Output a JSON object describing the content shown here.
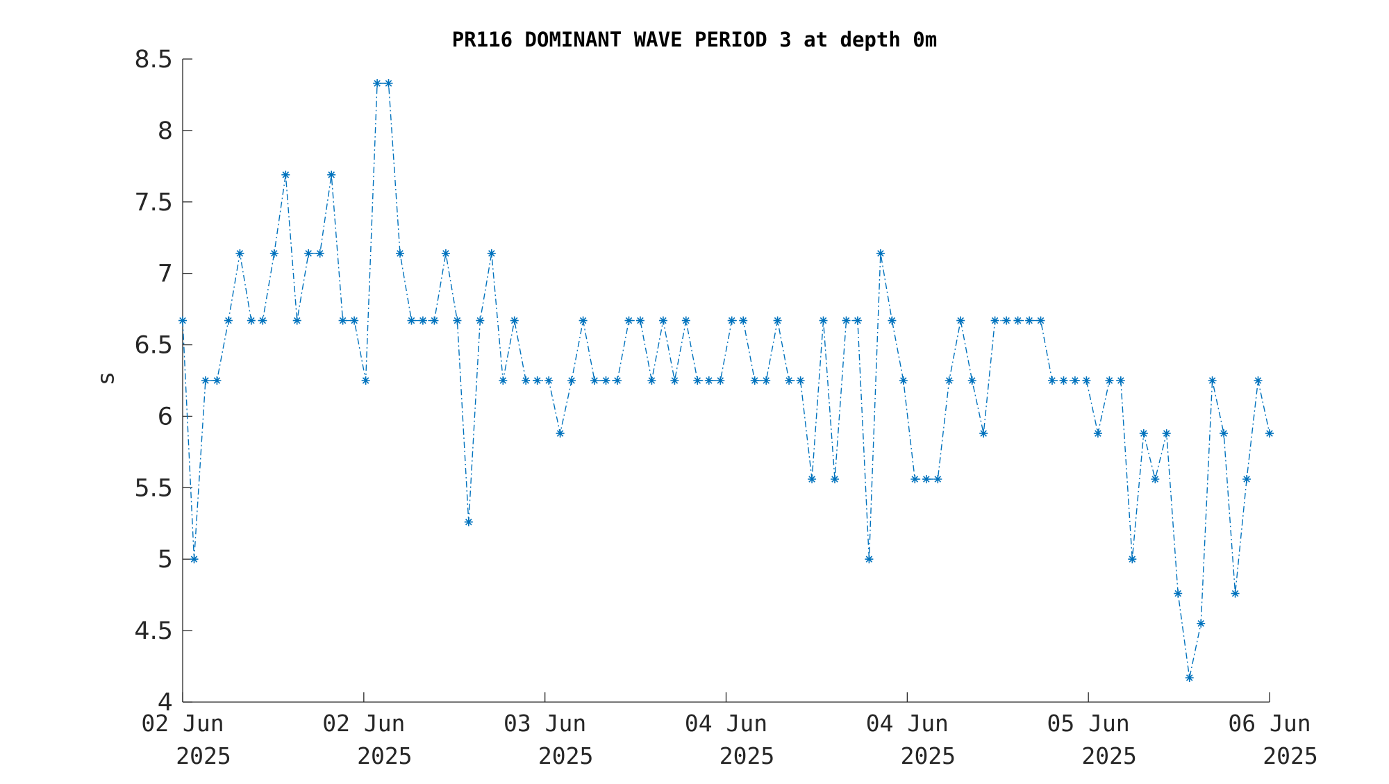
{
  "chart_data": {
    "type": "line",
    "title": "PR116 DOMINANT WAVE PERIOD 3 at depth 0m",
    "xlabel": "",
    "ylabel": "s",
    "ylim": [
      4,
      8.5
    ],
    "yticks": [
      "4",
      "4.5",
      "5",
      "5.5",
      "6",
      "6.5",
      "7",
      "7.5",
      "8",
      "8.5"
    ],
    "xticks": [
      {
        "line1": "02 Jun",
        "line2": "2025"
      },
      {
        "line1": "02 Jun",
        "line2": "2025"
      },
      {
        "line1": "03 Jun",
        "line2": "2025"
      },
      {
        "line1": "04 Jun",
        "line2": "2025"
      },
      {
        "line1": "04 Jun",
        "line2": "2025"
      },
      {
        "line1": "05 Jun",
        "line2": "2025"
      },
      {
        "line1": "06 Jun",
        "line2": "2025"
      }
    ],
    "line_style": "dash-dot",
    "marker": "asterisk",
    "color": "#0072BD",
    "series": [
      {
        "values": [
          6.67,
          5.0,
          6.25,
          6.25,
          6.67,
          7.14,
          6.67,
          6.67,
          7.14,
          7.69,
          6.67,
          7.14,
          7.14,
          7.69,
          6.67,
          6.67,
          6.25,
          8.33,
          8.33,
          7.14,
          6.67,
          6.67,
          6.67,
          7.14,
          6.67,
          5.26,
          6.67,
          7.14,
          6.25,
          6.67,
          6.25,
          6.25,
          6.25,
          5.88,
          6.25,
          6.67,
          6.25,
          6.25,
          6.25,
          6.67,
          6.67,
          6.25,
          6.67,
          6.25,
          6.67,
          6.25,
          6.25,
          6.25,
          6.67,
          6.67,
          6.25,
          6.25,
          6.67,
          6.25,
          6.25,
          5.56,
          6.67,
          5.56,
          6.67,
          6.67,
          5.0,
          7.14,
          6.67,
          6.25,
          5.56,
          5.56,
          5.56,
          6.25,
          6.67,
          6.25,
          5.88,
          6.67,
          6.67,
          6.67,
          6.67,
          6.67,
          6.25,
          6.25,
          6.25,
          6.25,
          5.88,
          6.25,
          6.25,
          5.0,
          5.88,
          5.56,
          5.88,
          4.76,
          4.17,
          4.55,
          6.25,
          5.88,
          4.76,
          5.56,
          6.25,
          5.88
        ]
      }
    ]
  }
}
